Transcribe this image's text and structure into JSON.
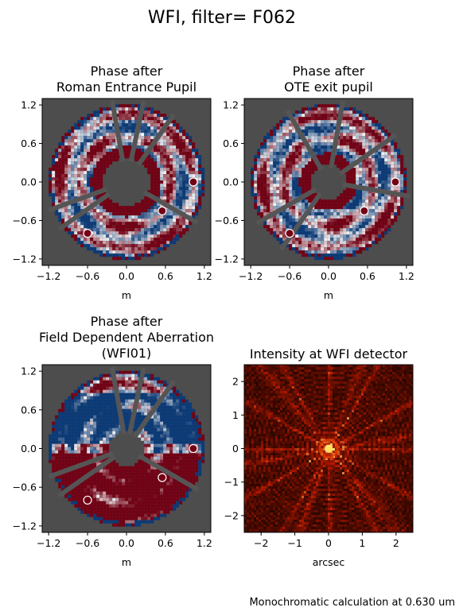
{
  "figure": {
    "suptitle": "WFI, filter= F062",
    "footer": "Monochromatic calculation at 0.630 um"
  },
  "colors": {
    "pupil_background": "#4d4d4d",
    "wavefront_red": "#730014",
    "wavefront_blue": "#0a3a78",
    "strut_gray": "#555555",
    "psf_bright": "#ffe066",
    "psf_mid": "#b31800",
    "psf_dark": "#000000"
  },
  "chart_data": [
    {
      "type": "heatmap",
      "panel": "entrance",
      "title_lines": [
        "Phase after",
        "Roman Entrance Pupil"
      ],
      "xlabel": "m",
      "ylabel": "",
      "xlim": [
        -1.3,
        1.3
      ],
      "ylim": [
        -1.3,
        1.3
      ],
      "xticks": [
        -1.2,
        -0.6,
        0.0,
        0.6,
        1.2
      ],
      "yticks": [
        -1.2,
        -0.6,
        0.0,
        0.6,
        1.2
      ],
      "xtick_labels": [
        "−1.2",
        "−0.6",
        "0.0",
        "0.6",
        "1.2"
      ],
      "ytick_labels": [
        "−1.2",
        "−0.6",
        "0.0",
        "0.6",
        "1.2"
      ],
      "pupil": {
        "outer_radius_m": 1.2,
        "inner_radius_m": 0.42,
        "strut_count": 6
      },
      "colormap": "RdBu"
    },
    {
      "type": "heatmap",
      "panel": "ote",
      "title_lines": [
        "Phase after",
        "OTE exit pupil"
      ],
      "xlabel": "m",
      "ylabel": "",
      "xlim": [
        -1.3,
        1.3
      ],
      "ylim": [
        -1.3,
        1.3
      ],
      "xticks": [
        -1.2,
        -0.6,
        0.0,
        0.6,
        1.2
      ],
      "yticks": [
        -1.2,
        -0.6,
        0.0,
        0.6,
        1.2
      ],
      "xtick_labels": [
        "−1.2",
        "−0.6",
        "0.0",
        "0.6",
        "1.2"
      ],
      "ytick_labels": [
        "−1.2",
        "−0.6",
        "0.0",
        "0.6",
        "1.2"
      ],
      "pupil": {
        "outer_radius_m": 1.2,
        "inner_radius_m": 0.32,
        "strut_count": 6
      },
      "colormap": "RdBu"
    },
    {
      "type": "heatmap",
      "panel": "field",
      "title_lines": [
        "Phase after",
        "Field Dependent Aberration",
        "(WFI01)"
      ],
      "xlabel": "m",
      "ylabel": "",
      "xlim": [
        -1.3,
        1.3
      ],
      "ylim": [
        -1.3,
        1.3
      ],
      "xticks": [
        -1.2,
        -0.6,
        0.0,
        0.6,
        1.2
      ],
      "yticks": [
        -1.2,
        -0.6,
        0.0,
        0.6,
        1.2
      ],
      "xtick_labels": [
        "−1.2",
        "−0.6",
        "0.0",
        "0.6",
        "1.2"
      ],
      "ytick_labels": [
        "−1.2",
        "−0.6",
        "0.0",
        "0.6",
        "1.2"
      ],
      "pupil": {
        "outer_radius_m": 1.2,
        "inner_radius_m": 0.32,
        "strut_count": 6
      },
      "colormap": "RdBu"
    },
    {
      "type": "heatmap",
      "panel": "psf",
      "title_lines": [
        "Intensity at WFI detector"
      ],
      "xlabel": "arcsec",
      "ylabel": "",
      "xlim": [
        -2.5,
        2.5
      ],
      "ylim": [
        -2.5,
        2.5
      ],
      "xticks": [
        -2,
        -1,
        0,
        1,
        2
      ],
      "yticks": [
        -2,
        -1,
        0,
        1,
        2
      ],
      "xtick_labels": [
        "−2",
        "−1",
        "0",
        "1",
        "2"
      ],
      "ytick_labels": [
        "−2",
        "−1",
        "0",
        "1",
        "2"
      ],
      "colormap": "gist_heat"
    }
  ]
}
